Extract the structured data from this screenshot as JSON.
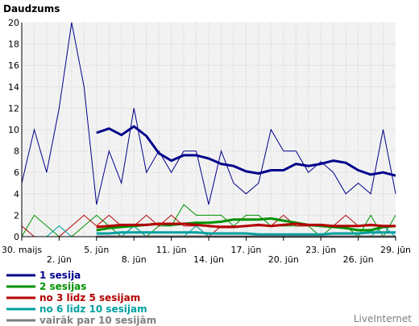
{
  "chart_data": {
    "type": "line",
    "title": "Daudzums",
    "xlabel": "",
    "ylabel": "",
    "ylim": [
      0,
      20
    ],
    "y_ticks": [
      "0",
      "2",
      "4",
      "6",
      "8",
      "10",
      "12",
      "14",
      "16",
      "18",
      "20"
    ],
    "x_tick_labels": [
      "30. maijs",
      "2. jūn",
      "5. jūn",
      "8. jūn",
      "11. jūn",
      "14. jūn",
      "17. jūn",
      "20. jūn",
      "23. jūn",
      "26. jūn",
      "29. jūn"
    ],
    "x_tick_days": [
      0,
      3,
      6,
      9,
      12,
      15,
      18,
      21,
      24,
      27,
      30
    ],
    "grid": true,
    "legend_position": "bottom-left",
    "footer": "LiveInternet",
    "colors": {
      "plot_background": "#f2f2f2",
      "grid": "#c8c8c8",
      "footer": "#7f7f7f"
    },
    "series": [
      {
        "name": "1 sesija",
        "color": "#00008b",
        "x": [
          0,
          1,
          2,
          3,
          4,
          5,
          6,
          7,
          8,
          9,
          10,
          11,
          12,
          13,
          14,
          15,
          16,
          17,
          18,
          19,
          20,
          21,
          22,
          23,
          24,
          25,
          26,
          27,
          28,
          29,
          30
        ],
        "values": [
          5,
          10,
          6,
          12,
          20,
          14,
          3,
          8,
          5,
          12,
          6,
          8,
          6,
          8,
          8,
          3,
          8,
          5,
          4,
          5,
          10,
          8,
          8,
          6,
          7,
          6,
          4,
          5,
          4,
          10,
          4
        ],
        "avg_x": [
          6,
          7,
          8,
          9,
          10,
          11,
          12,
          13,
          14,
          15,
          16,
          17,
          18,
          19,
          20,
          21,
          22,
          23,
          24,
          25,
          26,
          27,
          28,
          29,
          30
        ],
        "avg": [
          9.7,
          10.1,
          9.5,
          10.3,
          9.4,
          7.8,
          7.1,
          7.6,
          7.6,
          7.3,
          6.8,
          6.6,
          6.1,
          5.9,
          6.2,
          6.2,
          6.8,
          6.6,
          6.8,
          7.1,
          6.9,
          6.2,
          5.8,
          6.0,
          5.7
        ]
      },
      {
        "name": "2 sesijas",
        "color": "#009100",
        "x": [
          0,
          1,
          2,
          3,
          4,
          5,
          6,
          7,
          8,
          9,
          10,
          11,
          12,
          13,
          14,
          15,
          16,
          17,
          18,
          19,
          20,
          21,
          22,
          23,
          24,
          25,
          26,
          27,
          28,
          29,
          30
        ],
        "values": [
          0,
          2,
          1,
          0,
          0,
          1,
          2,
          1,
          0,
          1,
          0,
          1,
          1,
          3,
          2,
          2,
          2,
          1,
          2,
          2,
          1,
          1,
          1,
          1,
          0,
          1,
          1,
          0,
          2,
          0,
          2
        ],
        "avg_x": [
          6,
          7,
          8,
          9,
          10,
          11,
          12,
          13,
          14,
          15,
          16,
          17,
          18,
          19,
          20,
          21,
          22,
          23,
          24,
          25,
          26,
          27,
          28,
          29,
          30
        ],
        "avg": [
          0.6,
          0.8,
          0.9,
          1.0,
          1.1,
          1.2,
          1.1,
          1.2,
          1.3,
          1.3,
          1.4,
          1.6,
          1.6,
          1.6,
          1.7,
          1.5,
          1.3,
          1.1,
          1.0,
          0.9,
          0.8,
          0.6,
          0.6,
          0.9,
          1.0
        ]
      },
      {
        "name": "no 3 līdz 5 sesijam",
        "color": "#b40000",
        "x": [
          0,
          1,
          2,
          3,
          4,
          5,
          6,
          7,
          8,
          9,
          10,
          11,
          12,
          13,
          14,
          15,
          16,
          17,
          18,
          19,
          20,
          21,
          22,
          23,
          24,
          25,
          26,
          27,
          28,
          29,
          30
        ],
        "values": [
          1,
          0,
          0,
          0,
          1,
          2,
          1,
          2,
          1,
          1,
          2,
          1,
          2,
          1,
          1,
          0,
          1,
          1,
          1,
          1,
          1,
          2,
          1,
          1,
          1,
          1,
          2,
          1,
          1,
          1,
          1
        ],
        "avg_x": [
          6,
          7,
          8,
          9,
          10,
          11,
          12,
          13,
          14,
          15,
          16,
          17,
          18,
          19,
          20,
          21,
          22,
          23,
          24,
          25,
          26,
          27,
          28,
          29,
          30
        ],
        "avg": [
          0.9,
          1.0,
          1.1,
          1.1,
          1.1,
          1.2,
          1.2,
          1.2,
          1.1,
          1.0,
          0.9,
          0.9,
          1.0,
          1.1,
          1.0,
          1.1,
          1.2,
          1.1,
          1.1,
          1.0,
          1.0,
          1.0,
          1.1,
          1.0,
          1.0
        ]
      },
      {
        "name": "no 6 līdz 10 sesijam",
        "color": "#00a0a0",
        "x": [
          0,
          1,
          2,
          3,
          4,
          5,
          6,
          7,
          8,
          9,
          10,
          11,
          12,
          13,
          14,
          15,
          16,
          17,
          18,
          19,
          20,
          21,
          22,
          23,
          24,
          25,
          26,
          27,
          28,
          29,
          30
        ],
        "values": [
          0,
          0,
          0,
          1,
          0,
          0,
          0,
          0,
          0,
          1,
          0,
          0,
          0,
          0,
          1,
          0,
          0,
          0,
          0,
          0,
          0,
          0,
          0,
          0,
          0,
          0,
          0,
          0,
          0,
          1,
          0
        ],
        "avg_x": [
          6,
          7,
          8,
          9,
          10,
          11,
          12,
          13,
          14,
          15,
          16,
          17,
          18,
          19,
          20,
          21,
          22,
          23,
          24,
          25,
          26,
          27,
          28,
          29,
          30
        ],
        "avg": [
          0.3,
          0.3,
          0.4,
          0.4,
          0.4,
          0.4,
          0.4,
          0.4,
          0.4,
          0.3,
          0.3,
          0.3,
          0.3,
          0.2,
          0.2,
          0.2,
          0.2,
          0.2,
          0.2,
          0.3,
          0.3,
          0.3,
          0.4,
          0.4,
          0.4
        ]
      },
      {
        "name": "vairāk par 10 sesijām",
        "color": "#7f7f7f",
        "x": [
          0,
          1,
          2,
          3,
          4,
          5,
          6,
          7,
          8,
          9,
          10,
          11,
          12,
          13,
          14,
          15,
          16,
          17,
          18,
          19,
          20,
          21,
          22,
          23,
          24,
          25,
          26,
          27,
          28,
          29,
          30
        ],
        "values": [
          0,
          0,
          0,
          0,
          0,
          0,
          0,
          0,
          0,
          0,
          0,
          0,
          0,
          0,
          0,
          0,
          0,
          0,
          0,
          0,
          0,
          0,
          0,
          0,
          0,
          0,
          0,
          0,
          0,
          0,
          0
        ],
        "avg_x": [
          6,
          7,
          8,
          9,
          10,
          11,
          12,
          13,
          14,
          15,
          16,
          17,
          18,
          19,
          20,
          21,
          22,
          23,
          24,
          25,
          26,
          27,
          28,
          29,
          30
        ],
        "avg": [
          0,
          0,
          0,
          0,
          0,
          0,
          0,
          0,
          0,
          0,
          0,
          0,
          0,
          0,
          0,
          0,
          0,
          0,
          0,
          0,
          0,
          0,
          0,
          0,
          0
        ]
      }
    ]
  }
}
